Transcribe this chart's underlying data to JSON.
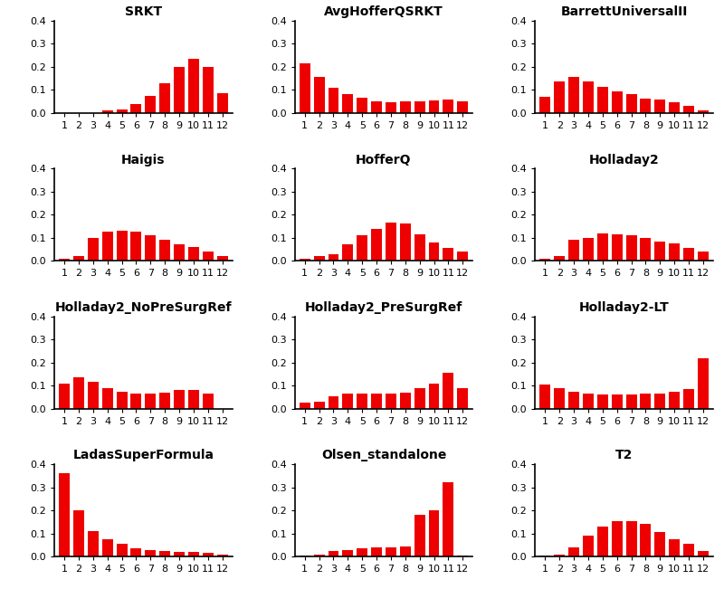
{
  "subplots": [
    {
      "title": "SRKT",
      "values": [
        0.0,
        0.0,
        0.0,
        0.01,
        0.015,
        0.04,
        0.075,
        0.13,
        0.2,
        0.235,
        0.2,
        0.085
      ]
    },
    {
      "title": "AvgHofferQSRKT",
      "values": [
        0.215,
        0.155,
        0.11,
        0.082,
        0.065,
        0.05,
        0.048,
        0.05,
        0.05,
        0.055,
        0.06,
        0.05
      ]
    },
    {
      "title": "BarrettUniversalII",
      "values": [
        0.07,
        0.135,
        0.155,
        0.135,
        0.115,
        0.095,
        0.082,
        0.062,
        0.058,
        0.048,
        0.03,
        0.01
      ]
    },
    {
      "title": "Haigis",
      "values": [
        0.01,
        0.02,
        0.1,
        0.125,
        0.13,
        0.125,
        0.11,
        0.09,
        0.07,
        0.06,
        0.04,
        0.02
      ]
    },
    {
      "title": "HofferQ",
      "values": [
        0.01,
        0.02,
        0.03,
        0.07,
        0.11,
        0.14,
        0.165,
        0.16,
        0.115,
        0.08,
        0.055,
        0.04
      ]
    },
    {
      "title": "Holladay2",
      "values": [
        0.01,
        0.02,
        0.09,
        0.1,
        0.12,
        0.115,
        0.11,
        0.1,
        0.085,
        0.075,
        0.055,
        0.04
      ]
    },
    {
      "title": "Holladay2_NoPreSurgRef",
      "values": [
        0.11,
        0.135,
        0.115,
        0.09,
        0.075,
        0.065,
        0.065,
        0.07,
        0.08,
        0.082,
        0.065,
        0.0
      ]
    },
    {
      "title": "Holladay2_PreSurgRef",
      "values": [
        0.025,
        0.03,
        0.055,
        0.065,
        0.065,
        0.065,
        0.065,
        0.07,
        0.09,
        0.11,
        0.155,
        0.09
      ]
    },
    {
      "title": "Holladay2-LT",
      "values": [
        0.105,
        0.09,
        0.075,
        0.065,
        0.06,
        0.06,
        0.06,
        0.065,
        0.065,
        0.075,
        0.085,
        0.22
      ]
    },
    {
      "title": "LadasSuperFormula",
      "values": [
        0.36,
        0.2,
        0.11,
        0.075,
        0.055,
        0.035,
        0.03,
        0.025,
        0.02,
        0.02,
        0.015,
        0.01
      ]
    },
    {
      "title": "Olsen_standalone",
      "values": [
        0.005,
        0.01,
        0.025,
        0.03,
        0.035,
        0.04,
        0.04,
        0.045,
        0.18,
        0.2,
        0.32,
        0.005
      ]
    },
    {
      "title": "T2",
      "values": [
        0.005,
        0.01,
        0.04,
        0.09,
        0.13,
        0.155,
        0.155,
        0.14,
        0.105,
        0.075,
        0.055,
        0.025
      ]
    }
  ],
  "bar_color": "#ee0000",
  "ylim": [
    0,
    0.4
  ],
  "yticks": [
    0.0,
    0.1,
    0.2,
    0.3,
    0.4
  ],
  "xticks": [
    1,
    2,
    3,
    4,
    5,
    6,
    7,
    8,
    9,
    10,
    11,
    12
  ],
  "title_fontsize": 10,
  "tick_fontsize": 8,
  "nrows": 4,
  "ncols": 3
}
